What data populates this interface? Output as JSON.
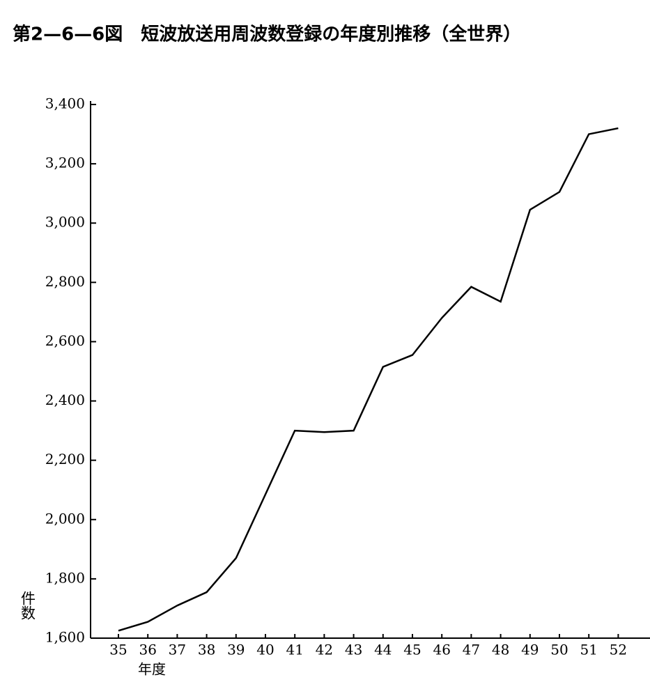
{
  "chart_data": {
    "type": "line",
    "title": "第2—6—6図　短波放送用周波数登録の年度別推移（全世界）",
    "y_label": "件数",
    "x_label": "年度",
    "categories": [
      "35",
      "36",
      "37",
      "38",
      "39",
      "40",
      "41",
      "42",
      "43",
      "44",
      "45",
      "46",
      "47",
      "48",
      "49",
      "50",
      "51",
      "52"
    ],
    "series": [
      {
        "name": "短波放送用周波数登録",
        "color": "#000000",
        "values": [
          1625,
          1655,
          1710,
          1755,
          1870,
          2085,
          2300,
          2295,
          2300,
          2515,
          2555,
          2680,
          2785,
          2735,
          3045,
          3105,
          3300,
          3320
        ]
      }
    ],
    "ylim": [
      1600,
      3400
    ],
    "yticks": [
      {
        "value": 1600,
        "label": "1,600"
      },
      {
        "value": 1800,
        "label": "1,800"
      },
      {
        "value": 2000,
        "label": "2,000"
      },
      {
        "value": 2200,
        "label": "2,200"
      },
      {
        "value": 2400,
        "label": "2,400"
      },
      {
        "value": 2600,
        "label": "2,600"
      },
      {
        "value": 2800,
        "label": "2,800"
      },
      {
        "value": 3000,
        "label": "3,000"
      },
      {
        "value": 3200,
        "label": "3,200"
      },
      {
        "value": 3400,
        "label": "3,400"
      }
    ]
  }
}
